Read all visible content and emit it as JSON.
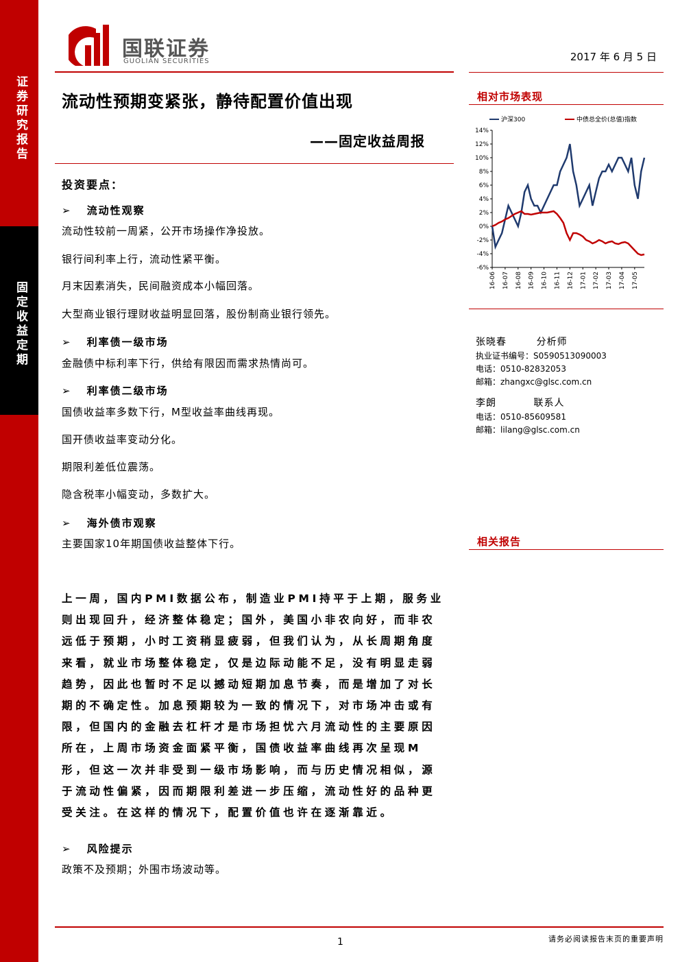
{
  "header": {
    "logo_cn": "国联证券",
    "logo_en": "GUOLIAN SECURITIES",
    "date": "2017 年 6 月 5 日"
  },
  "sidebar": [
    "证券研究报告",
    "固定收益定期"
  ],
  "title": "流动性预期变紧张，静待配置价值出现",
  "subtitle": "——固定收益周报",
  "key_points": {
    "heading": "投资要点：",
    "items": [
      {
        "heading": "流动性观察",
        "paragraphs": [
          "流动性较前一周紧，公开市场操作净投放。",
          "银行间利率上行，流动性紧平衡。",
          "月末因素消失，民间融资成本小幅回落。",
          "大型商业银行理财收益明显回落，股份制商业银行领先。"
        ]
      },
      {
        "heading": "利率债一级市场",
        "paragraphs": [
          "金融债中标利率下行，供给有限因而需求热情尚可。"
        ]
      },
      {
        "heading": "利率债二级市场",
        "paragraphs": [
          "国债收益率多数下行，M型收益率曲线再现。",
          "国开债收益率变动分化。",
          "期限利差低位震荡。",
          "隐含税率小幅变动，多数扩大。"
        ]
      },
      {
        "heading": "海外债市观察",
        "paragraphs": [
          "主要国家10年期国债收益整体下行。"
        ]
      }
    ]
  },
  "body": "上一周，国内PMI数据公布，制造业PMI持平于上期，服务业则出现回升，经济整体稳定；国外，美国小非农向好，而非农远低于预期，小时工资稍显疲弱，但我们认为，从长周期角度来看，就业市场整体稳定，仅是边际动能不足，没有明显走弱趋势，因此也暂时不足以撼动短期加息节奏，而是增加了对长期的不确定性。加息预期较为一致的情况下，对市场冲击或有限，但国内的金融去杠杆才是市场担忧六月流动性的主要原因所在，上周市场资金面紧平衡，国债收益率曲线再次呈现M形，但这一次并非受到一级市场影响，而与历史情况相似，源于流动性偏紧，因而期限利差进一步压缩，流动性好的品种更受关注。在这样的情况下，配置价值也许在逐渐靠近。",
  "risk": {
    "heading": "风险提示",
    "text": "政策不及预期；外围市场波动等。"
  },
  "market_title": "相对市场表现",
  "chart_data": {
    "type": "line",
    "series": [
      {
        "name": "沪深300",
        "color": "#1f3a6e",
        "values": [
          0,
          -3,
          -2,
          -1,
          1,
          3,
          2,
          1,
          0,
          2,
          5,
          6,
          4,
          3,
          3,
          2,
          3,
          4,
          5,
          6,
          6,
          8,
          9,
          10,
          12,
          8,
          6,
          3,
          4,
          5,
          6,
          3,
          5,
          7,
          8,
          8,
          9,
          8,
          9,
          10,
          10,
          9,
          8,
          10,
          6,
          4,
          8,
          10
        ]
      },
      {
        "name": "中债总全价(总值)指数",
        "color": "#c00000",
        "values": [
          0,
          0.2,
          0.5,
          0.7,
          1,
          1.2,
          1.5,
          1.8,
          2,
          2.2,
          1.8,
          1.8,
          1.7,
          1.8,
          1.9,
          2,
          2,
          2,
          2.1,
          2.2,
          1.8,
          1.2,
          0.5,
          -1,
          -2,
          -1,
          -1,
          -1.2,
          -1.5,
          -2,
          -2.2,
          -2.5,
          -2.3,
          -2,
          -2.2,
          -2.5,
          -2.3,
          -2.2,
          -2.5,
          -2.6,
          -2.4,
          -2.3,
          -2.5,
          -3,
          -3.5,
          -4,
          -4.2,
          -4.1
        ]
      }
    ],
    "ylim": [
      -6,
      14
    ],
    "yticks": [
      {
        "value": -6,
        "label": "-6%"
      },
      {
        "value": -4,
        "label": "-4%"
      },
      {
        "value": -2,
        "label": "-2%"
      },
      {
        "value": 0,
        "label": "0%"
      },
      {
        "value": 2,
        "label": "2%"
      },
      {
        "value": 4,
        "label": "4%"
      },
      {
        "value": 6,
        "label": "6%"
      },
      {
        "value": 8,
        "label": "8%"
      },
      {
        "value": 10,
        "label": "10%"
      },
      {
        "value": 12,
        "label": "12%"
      },
      {
        "value": 14,
        "label": "14%"
      }
    ],
    "xticks": [
      {
        "value": 0,
        "label": "16-06"
      },
      {
        "value": 4,
        "label": "16-07"
      },
      {
        "value": 8,
        "label": "16-08"
      },
      {
        "value": 12,
        "label": "16-09"
      },
      {
        "value": 16,
        "label": "16-10"
      },
      {
        "value": 20,
        "label": "16-11"
      },
      {
        "value": 24,
        "label": "16-12"
      },
      {
        "value": 28,
        "label": "17-01"
      },
      {
        "value": 32,
        "label": "17-02"
      },
      {
        "value": 36,
        "label": "17-03"
      },
      {
        "value": 40,
        "label": "17-04"
      },
      {
        "value": 44,
        "label": "17-05"
      }
    ]
  },
  "analysts": [
    "张晓春        分析师",
    "执业证书编号：S0590513090003",
    "电话：0510-82832053",
    "邮箱：zhangxc@glsc.com.cn",
    "李朗          联系人",
    "电话：0510-85609581",
    "邮箱：lilang@glsc.com.cn"
  ],
  "related": "相关报告",
  "footer": {
    "page": "1",
    "note": "请务必阅读报告末页的重要声明"
  }
}
